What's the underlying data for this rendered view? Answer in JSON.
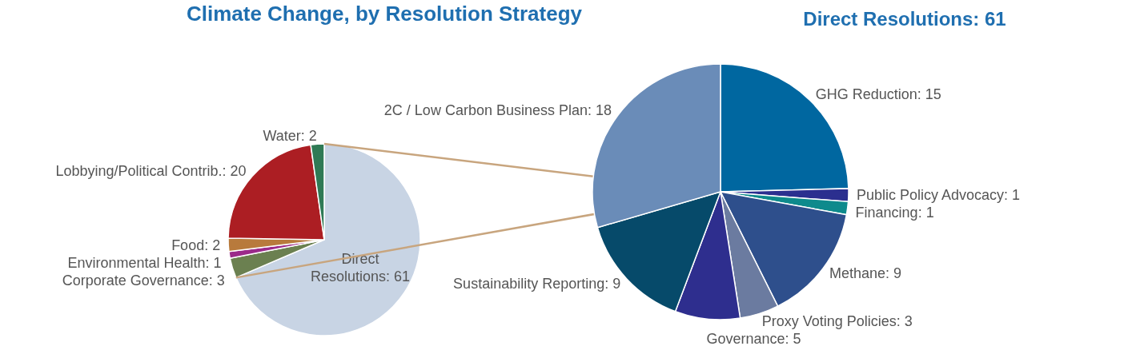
{
  "chart_data": [
    {
      "type": "pie",
      "title": "Climate Change, by Resolution Strategy",
      "categories": [
        "Direct Resolutions: 61",
        "Corporate Governance: 3",
        "Environmental Health: 1",
        "Food: 2",
        "Lobbying/Political Contrib.: 20",
        "Water: 2"
      ],
      "values": [
        61,
        3,
        1,
        2,
        20,
        2
      ],
      "colors": [
        "#c8d4e4",
        "#6b8050",
        "#9b2a8a",
        "#b87a3c",
        "#ac1e23",
        "#2f7a55"
      ]
    },
    {
      "type": "pie",
      "title": "Direct Resolutions: 61",
      "categories": [
        "GHG Reduction: 15",
        "Public Policy Advocacy: 1",
        "Financing: 1",
        "Methane: 9",
        "Proxy Voting Policies: 3",
        "Governance: 5",
        "Sustainability Reporting: 9",
        "2C / Low Carbon Business Plan: 18"
      ],
      "values": [
        15,
        1,
        1,
        9,
        3,
        5,
        9,
        18
      ],
      "colors": [
        "#0067a0",
        "#2b2f8f",
        "#0e8a8c",
        "#2e4f8c",
        "#6b7ba0",
        "#2e2e8e",
        "#064a6a",
        "#6a8cb8"
      ]
    }
  ]
}
